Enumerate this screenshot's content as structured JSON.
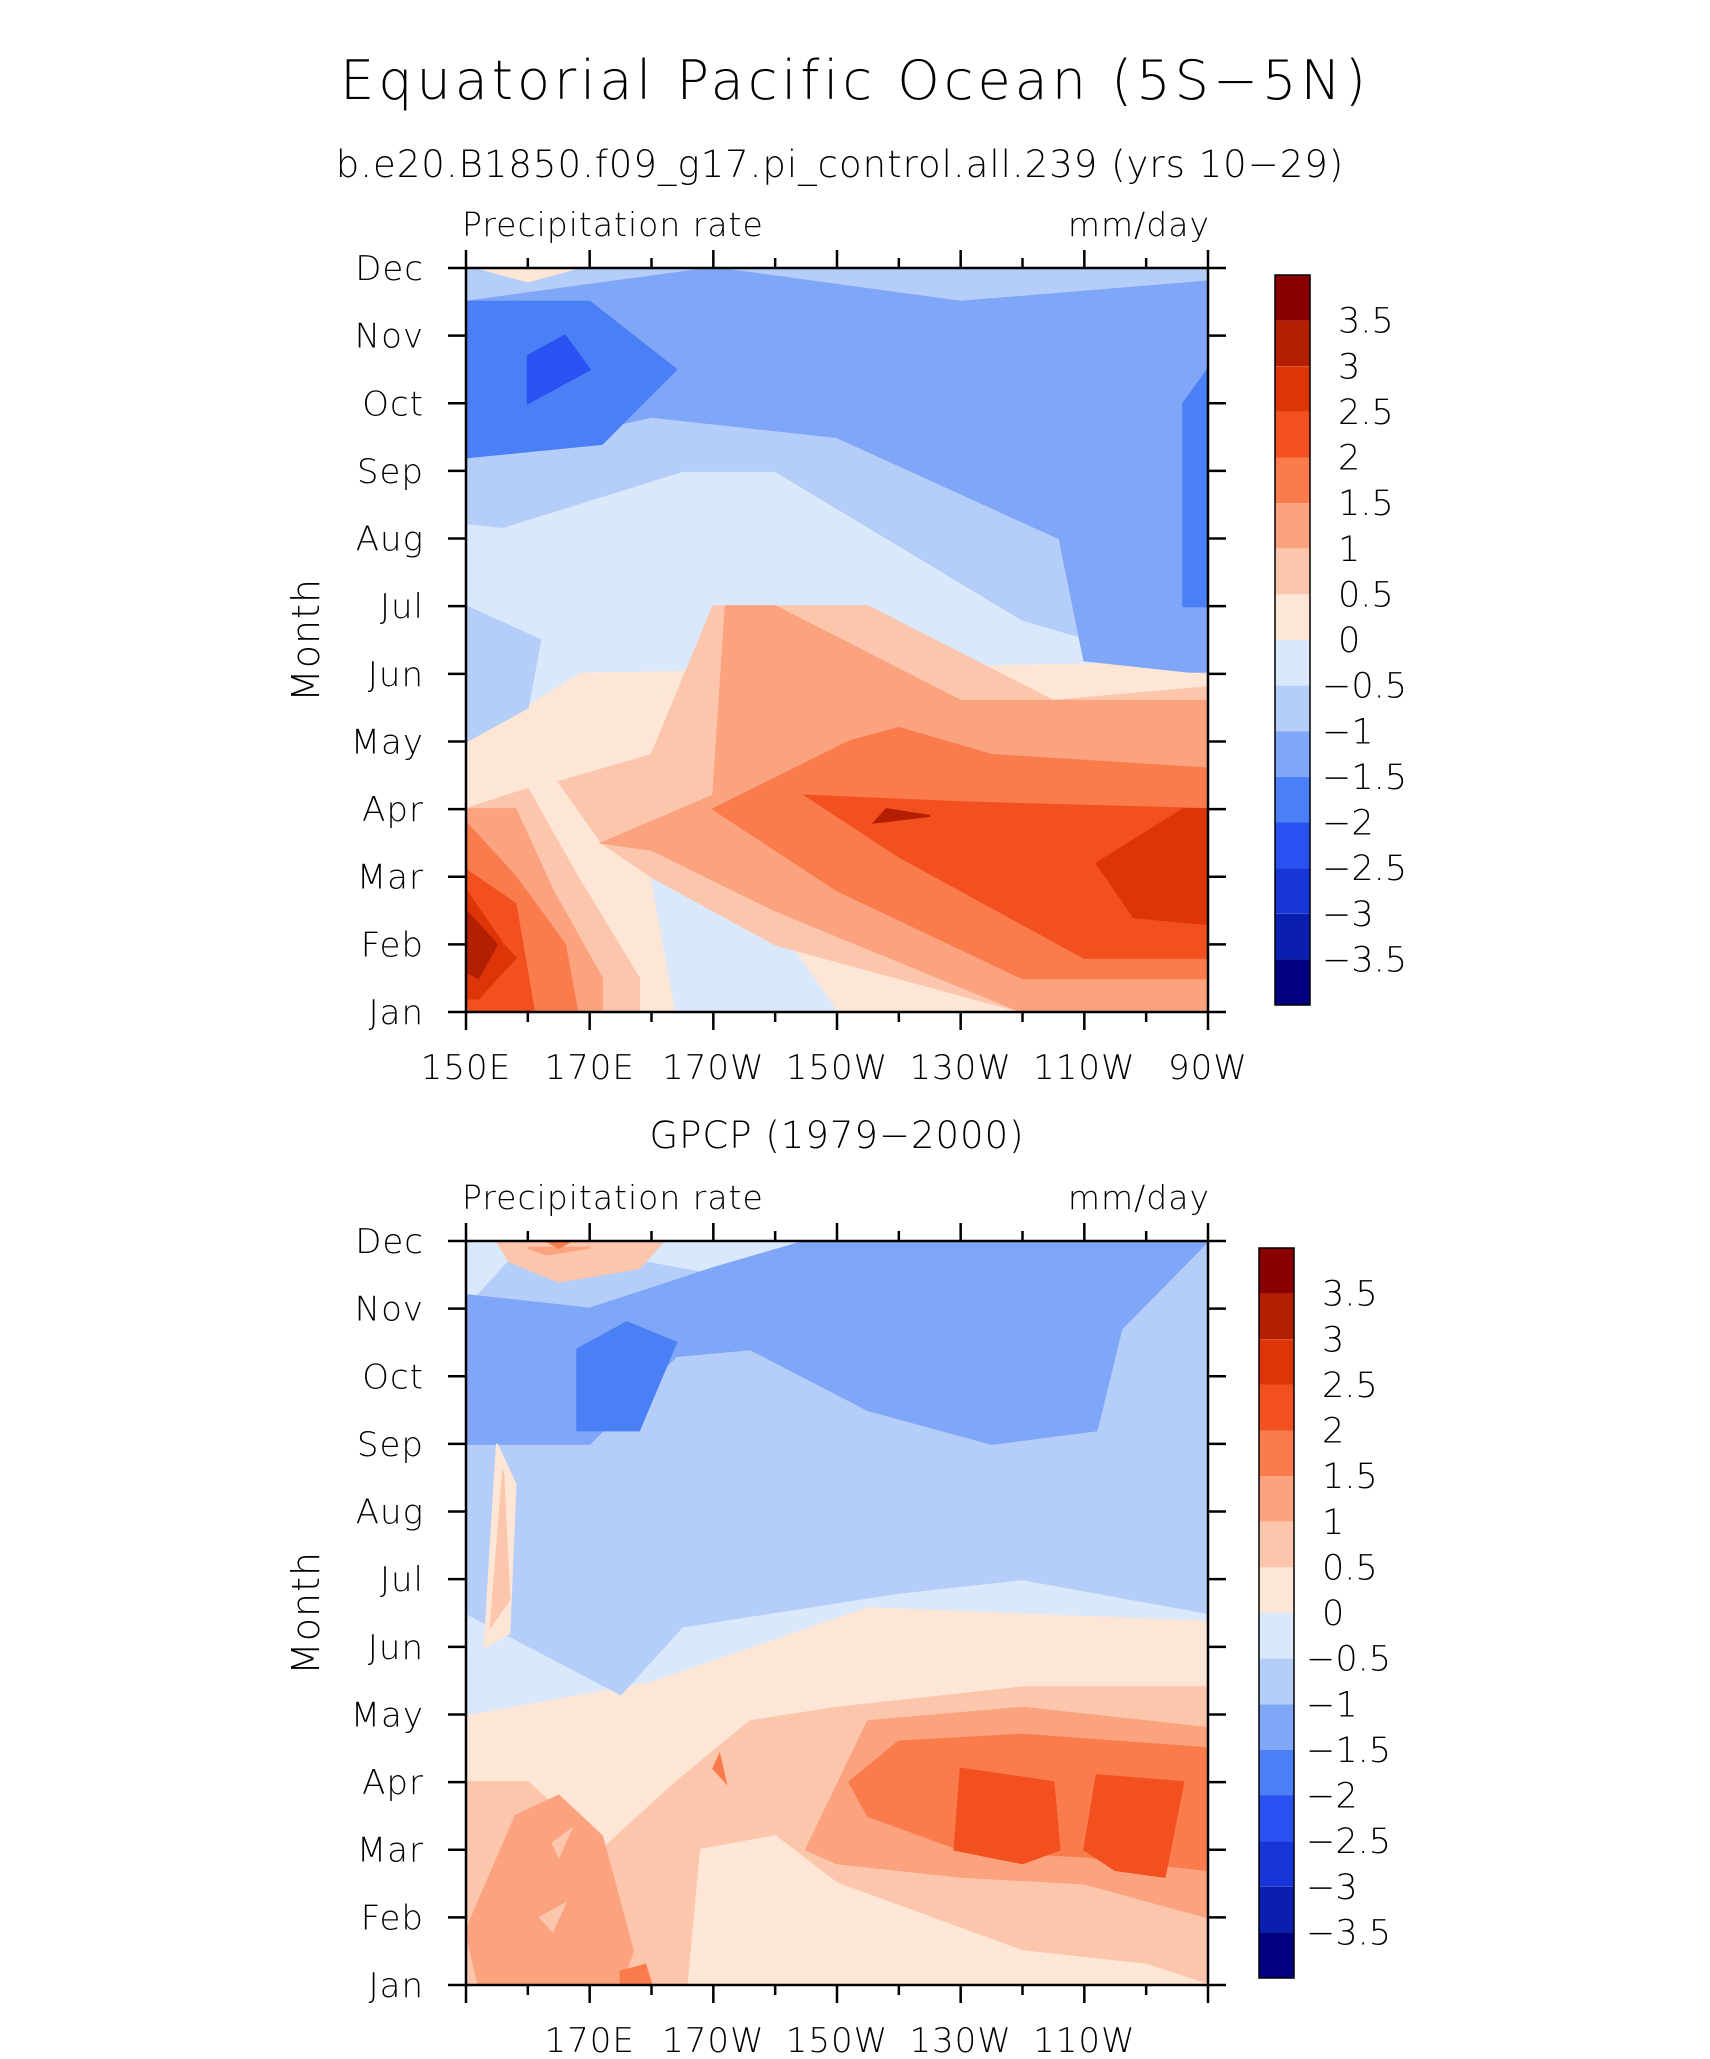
{
  "figure": {
    "title": "Equatorial Pacific Ocean (5S−5N)"
  },
  "colors": {
    "levels": [
      "#000080",
      "#0a1fb0",
      "#1736d8",
      "#2a52f2",
      "#4b7ff5",
      "#7fa6f7",
      "#b5cdf9",
      "#d9e8fb",
      "#fde6d6",
      "#fcc6ad",
      "#fba27f",
      "#fa7b4b",
      "#f3501f",
      "#dd3508",
      "#b41f02",
      "#8a0000"
    ]
  },
  "chart_data": [
    {
      "type": "heatmap",
      "title": "b.e20.B1850.f09_g17.pi_control.all.239 (yrs 10−29)",
      "left_label": "Precipitation rate",
      "right_label": "mm/day",
      "ylabel": "Month",
      "xlabel": "",
      "x_ticks": [
        "150E",
        "170E",
        "170W",
        "150W",
        "130W",
        "110W",
        "90W"
      ],
      "x_values_deg_east": [
        150,
        170,
        190,
        210,
        230,
        250,
        270
      ],
      "xlim": [
        150,
        270
      ],
      "y_ticks": [
        "Jan",
        "Feb",
        "Mar",
        "Apr",
        "May",
        "Jun",
        "Jul",
        "Aug",
        "Sep",
        "Oct",
        "Nov",
        "Dec"
      ],
      "colorbar": {
        "levels": [
          -3.5,
          -3,
          -2.5,
          -2,
          -1.5,
          -1,
          -0.5,
          0,
          0.5,
          1,
          1.5,
          2,
          2.5,
          3,
          3.5
        ],
        "labels": [
          "3.5",
          "3",
          "2.5",
          "2",
          "1.5",
          "1",
          "0.5",
          "0",
          "−0.5",
          "−1",
          "−1.5",
          "−2",
          "−2.5",
          "−3",
          "−3.5"
        ]
      },
      "grid": false,
      "legend": "colorbar right",
      "field_summary": "Anomalies of 3.0-3.9 mm/day in the far west in Feb; anomalies of 2-3 mm/day in Mar-Apr centred in the east; anomalies of -1.5 to -2.5 mm/day in Sep-Nov in the west; anomalies of -1 to -1.5 mm/day in Aug-Dec in the east"
    },
    {
      "type": "heatmap",
      "title": "GPCP (1979−2000)",
      "left_label": "Precipitation rate",
      "right_label": "mm/day",
      "ylabel": "Month",
      "xlabel": "",
      "x_ticks": [
        "170E",
        "170W",
        "150W",
        "130W",
        "110W"
      ],
      "x_values_deg_east": [
        170,
        190,
        210,
        230,
        250
      ],
      "xlim": [
        150,
        270
      ],
      "y_ticks": [
        "Jan",
        "Feb",
        "Mar",
        "Apr",
        "May",
        "Jun",
        "Jul",
        "Aug",
        "Sep",
        "Oct",
        "Nov",
        "Dec"
      ],
      "colorbar": {
        "levels": [
          -3.5,
          -3,
          -2.5,
          -2,
          -1.5,
          -1,
          -0.5,
          0,
          0.5,
          1,
          1.5,
          2,
          2.5,
          3,
          3.5
        ],
        "labels": [
          "3.5",
          "3",
          "2.5",
          "2",
          "1.5",
          "1",
          "0.5",
          "0",
          "−0.5",
          "−1",
          "−1.5",
          "−2",
          "−2.5",
          "−3",
          "−3.5"
        ]
      },
      "grid": false,
      "legend": "colorbar right",
      "field_summary": "Anomalies of 1.5-2.5 mm/day in Mar-Apr from 150W to 90W; anomalies of 0.5-1.5 mm/day in Jan-Apr in the west; anomalies of -1.5 to -2 mm/day in Sep-Oct near 170E; anomalies of -0.5 to -1.5 mm/day in Jul-Nov in the east"
    }
  ]
}
